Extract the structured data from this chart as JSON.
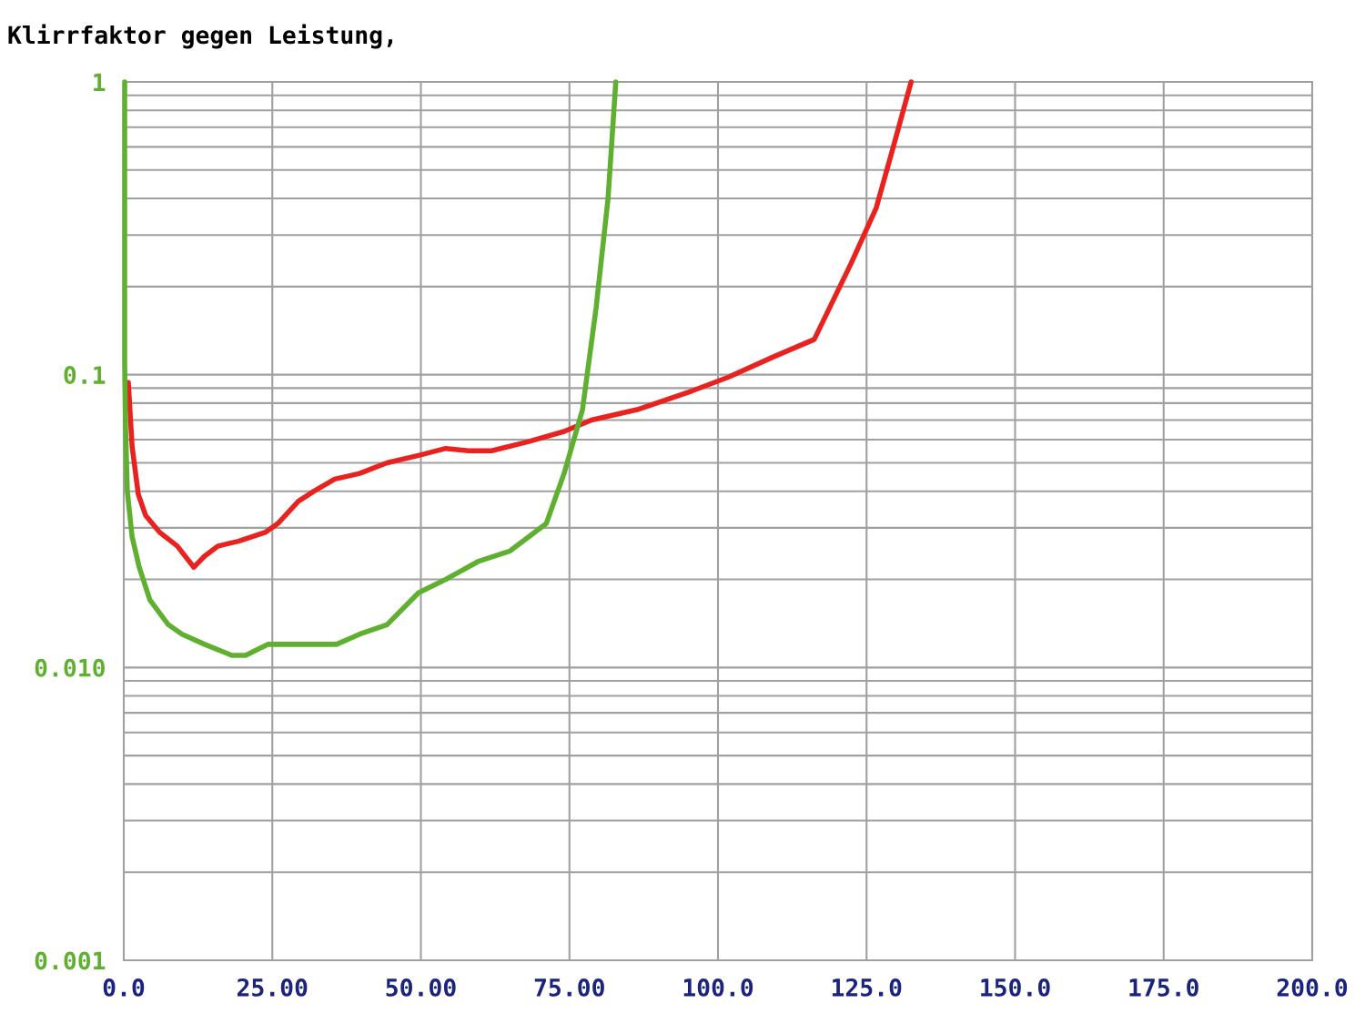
{
  "chart_data": {
    "type": "line",
    "title": "Klirrfaktor gegen Leistung,",
    "log": "y",
    "grid": true,
    "xlim": [
      0,
      200
    ],
    "ylim": [
      0.001,
      1
    ],
    "xticks": [
      {
        "value": 0,
        "label": "0.0"
      },
      {
        "value": 25,
        "label": "25.00"
      },
      {
        "value": 50,
        "label": "50.00"
      },
      {
        "value": 75,
        "label": "75.00"
      },
      {
        "value": 100,
        "label": "100.0"
      },
      {
        "value": 125,
        "label": "125.0"
      },
      {
        "value": 150,
        "label": "150.0"
      },
      {
        "value": 175,
        "label": "175.0"
      },
      {
        "value": 200,
        "label": "200.0"
      }
    ],
    "yticks": [
      {
        "value": 0.001,
        "label": "0.001"
      },
      {
        "value": 0.01,
        "label": "0.010"
      },
      {
        "value": 0.1,
        "label": "0.1"
      },
      1
    ],
    "series": [
      {
        "color": "#e8231f",
        "x": [
          0.77,
          1.4,
          2.45,
          3.7,
          6.0,
          9.0,
          11.8,
          13.6,
          15.9,
          19.3,
          23.9,
          25.9,
          29.4,
          32.0,
          35.5,
          39.7,
          44.3,
          49.6,
          54.2,
          58.0,
          61.9,
          68.0,
          74.1,
          78.7,
          86.4,
          95.6,
          101.7,
          109.3,
          116.2,
          122.4,
          126.6,
          129.2,
          132.5
        ],
        "values": [
          0.094,
          0.057,
          0.039,
          0.033,
          0.029,
          0.026,
          0.022,
          0.024,
          0.026,
          0.027,
          0.029,
          0.031,
          0.037,
          0.04,
          0.044,
          0.046,
          0.05,
          0.053,
          0.056,
          0.055,
          0.055,
          0.059,
          0.064,
          0.07,
          0.076,
          0.088,
          0.098,
          0.115,
          0.132,
          0.24,
          0.37,
          0.57,
          1.0
        ]
      },
      {
        "color": "#5fb030",
        "x": [
          0.15,
          0.15,
          0.3,
          0.6,
          1.4,
          2.6,
          4.4,
          7.5,
          9.8,
          13.6,
          18.2,
          20.5,
          24.3,
          27.4,
          32.0,
          35.8,
          39.7,
          44.3,
          49.6,
          54.2,
          59.6,
          65.0,
          71.1,
          74.1,
          77.2,
          79.5,
          81.5,
          82.8
        ],
        "values": [
          1.0,
          0.11,
          0.066,
          0.04,
          0.028,
          0.022,
          0.017,
          0.014,
          0.013,
          0.012,
          0.011,
          0.011,
          0.012,
          0.012,
          0.012,
          0.012,
          0.013,
          0.014,
          0.018,
          0.02,
          0.023,
          0.025,
          0.031,
          0.046,
          0.076,
          0.17,
          0.4,
          1.0
        ]
      }
    ]
  }
}
